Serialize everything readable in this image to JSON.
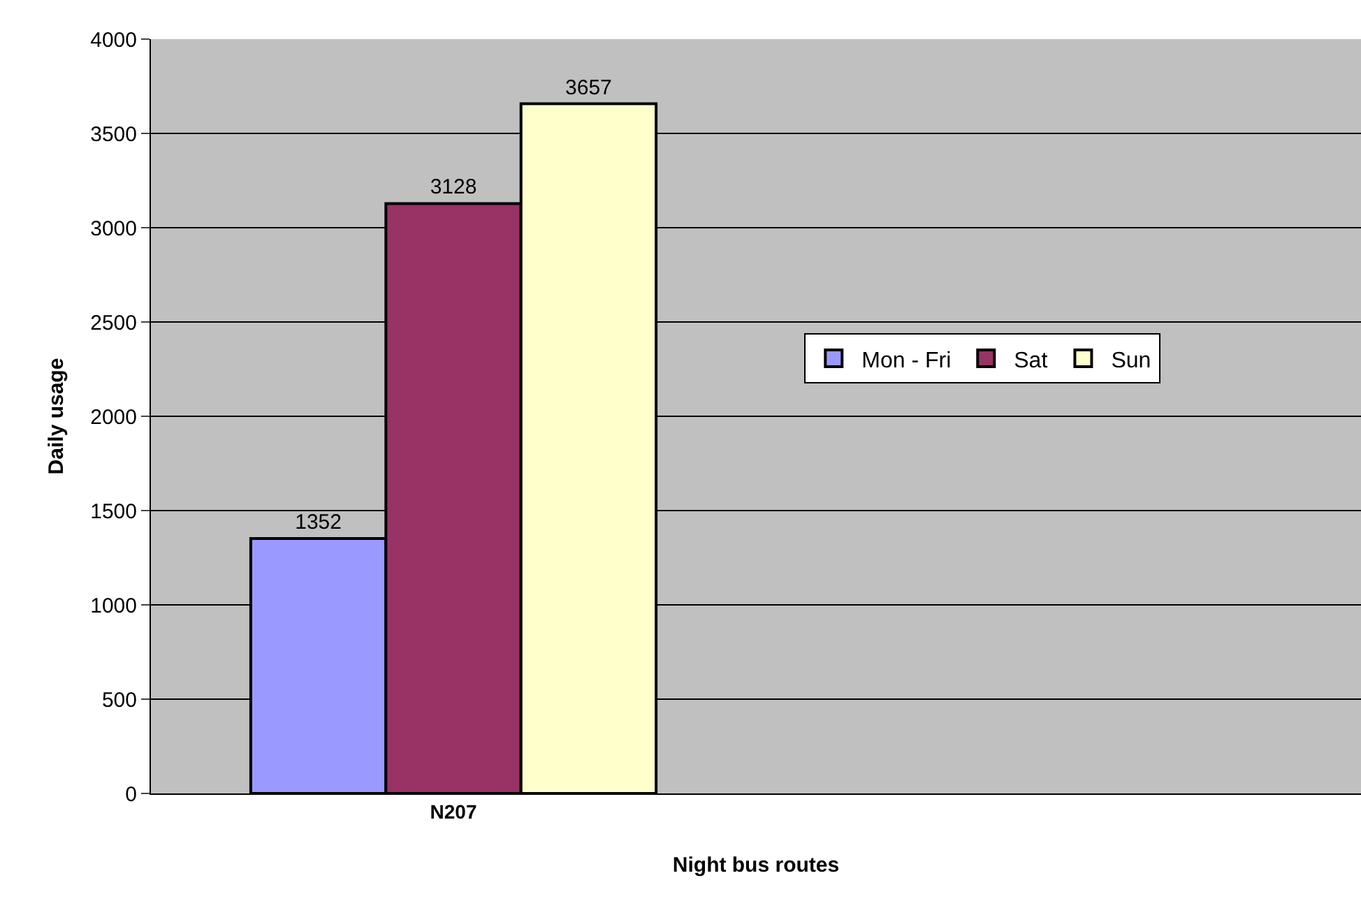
{
  "chart_data": {
    "type": "bar",
    "xlabel": "Night bus routes",
    "ylabel": "Daily usage",
    "categories": [
      "N207",
      null
    ],
    "series": [
      {
        "name": "Mon - Fri",
        "color": "#9999ff",
        "values": [
          1352,
          null
        ]
      },
      {
        "name": "Sat",
        "color": "#993366",
        "values": [
          3128,
          null
        ]
      },
      {
        "name": "Sun",
        "color": "#ffffcc",
        "values": [
          3657,
          null
        ]
      }
    ],
    "ylim": [
      0,
      4000
    ],
    "yticks": [
      0,
      500,
      1000,
      1500,
      2000,
      2500,
      3000,
      3500,
      4000
    ],
    "grid": "y",
    "legend": "right",
    "data_labels": true
  }
}
